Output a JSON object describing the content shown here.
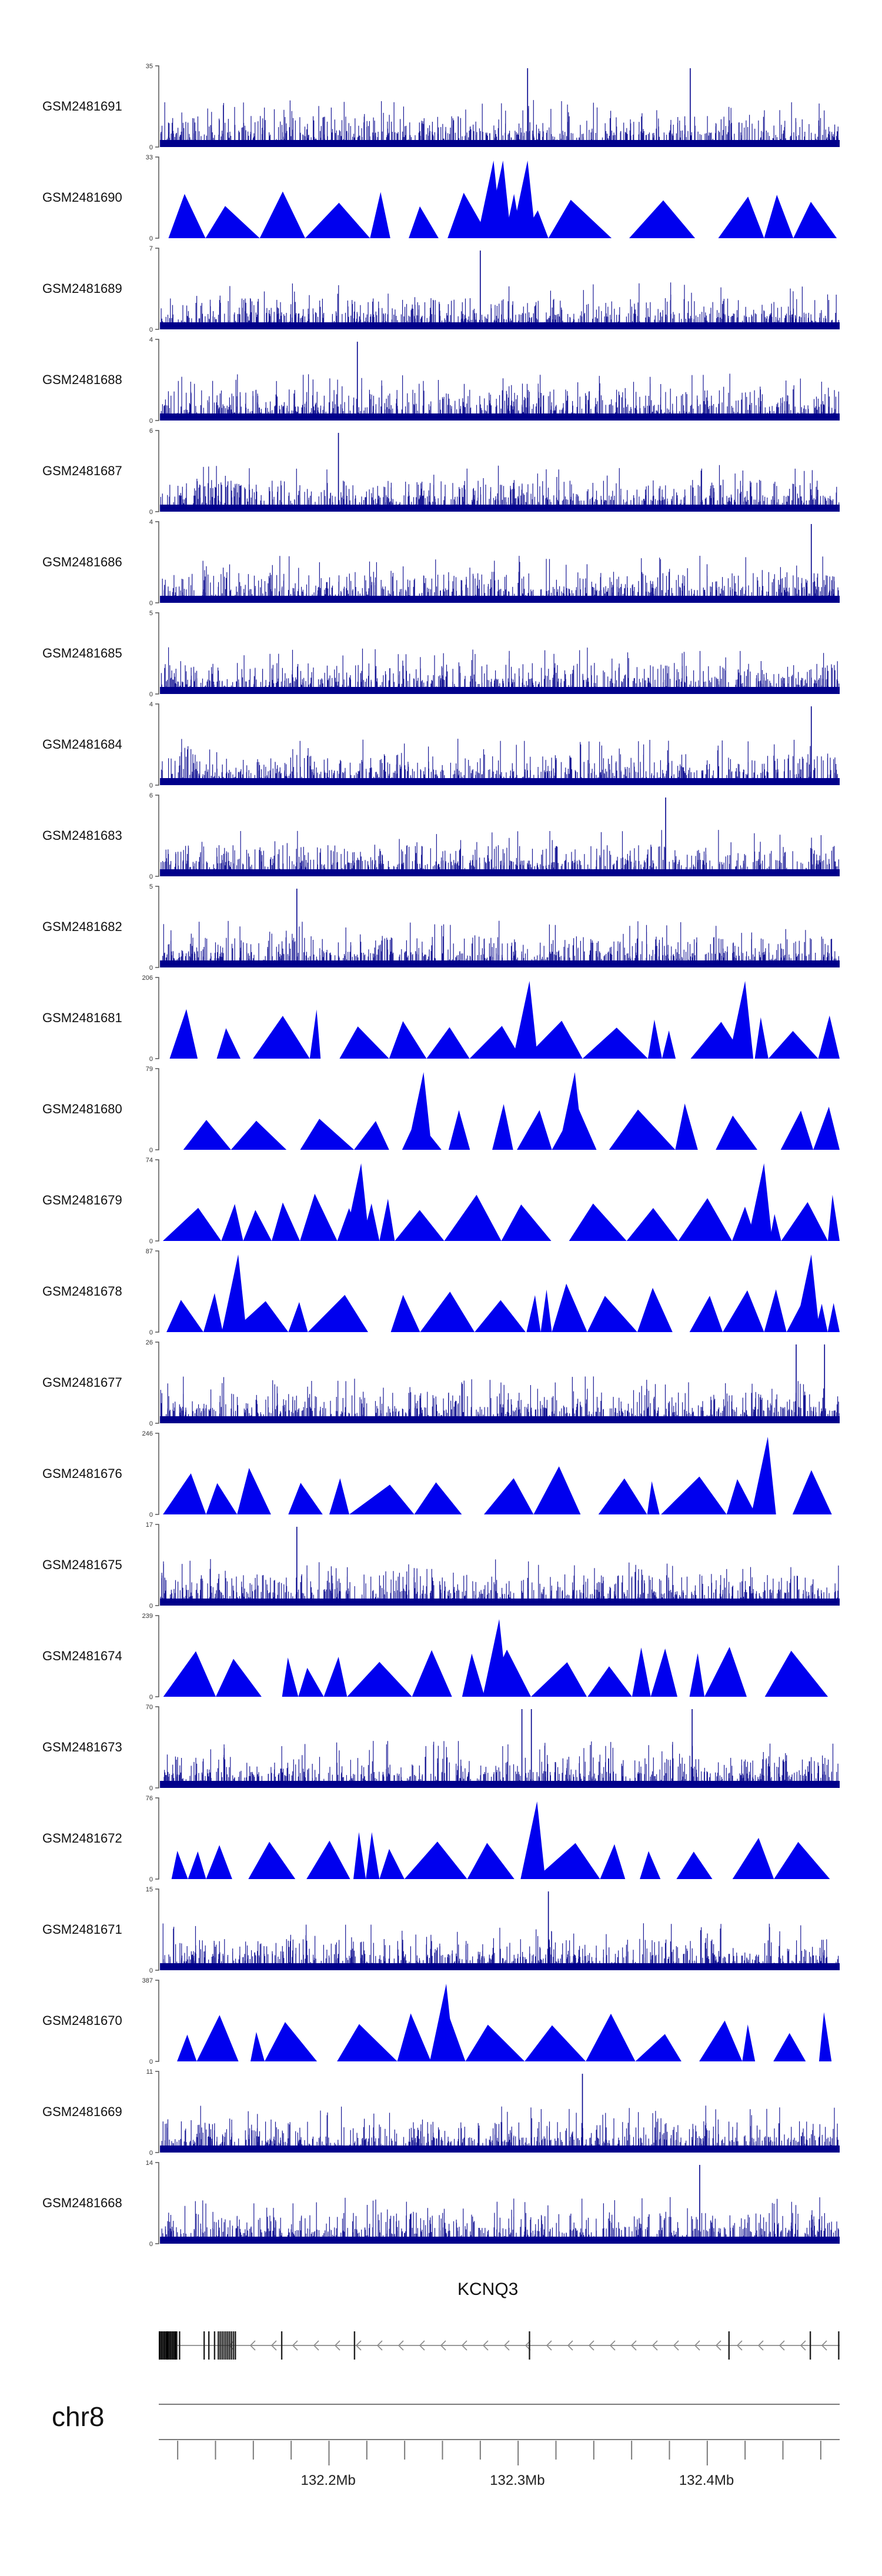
{
  "colors": {
    "signal": "#0000ee",
    "signal_dark": "#00008b",
    "axis": "#555555",
    "gene": "#222222"
  },
  "chart_data": {
    "type": "genome-track",
    "title": "",
    "chromosome": "chr8",
    "xlim_mb": [
      132.11,
      132.47
    ],
    "x_ticks_mb": [
      132.12,
      132.14,
      132.16,
      132.18,
      132.2,
      132.22,
      132.24,
      132.26,
      132.28,
      132.3,
      132.32,
      132.34,
      132.36,
      132.38,
      132.4,
      132.42,
      132.44,
      132.46
    ],
    "x_tick_labels": [
      {
        "label": "132.2Mb",
        "value": 132.2
      },
      {
        "label": "132.3Mb",
        "value": 132.3
      },
      {
        "label": "132.4Mb",
        "value": 132.4
      }
    ],
    "gene": {
      "name": "KCNQ3",
      "strand": "-",
      "start_mb": 132.11,
      "end_mb": 132.47,
      "exons_mb": [
        132.111,
        132.112,
        132.1125,
        132.1135,
        132.1155,
        132.1165,
        132.117,
        132.118,
        132.1195,
        132.121,
        132.134,
        132.1365,
        132.1395,
        132.1415,
        132.1425,
        132.1435,
        132.1445,
        132.1455,
        132.1465,
        132.1475,
        132.1485,
        132.1495,
        132.1505,
        132.175,
        132.2135,
        132.306,
        132.4115,
        132.4545,
        132.4695
      ]
    },
    "tracks": [
      {
        "name": "GSM2481691",
        "ymax": 35,
        "style": "dense",
        "peaks_mb": [
          132.305,
          132.391
        ]
      },
      {
        "name": "GSM2481690",
        "ymax": 33,
        "style": "tri",
        "peaks_mb": [
          132.287,
          132.292,
          132.305
        ]
      },
      {
        "name": "GSM2481689",
        "ymax": 7,
        "style": "dense",
        "peaks_mb": [
          132.28
        ]
      },
      {
        "name": "GSM2481688",
        "ymax": 4,
        "style": "dense",
        "peaks_mb": [
          132.215
        ]
      },
      {
        "name": "GSM2481687",
        "ymax": 6,
        "style": "dense",
        "peaks_mb": [
          132.205
        ]
      },
      {
        "name": "GSM2481686",
        "ymax": 4,
        "style": "dense",
        "peaks_mb": [
          132.455
        ]
      },
      {
        "name": "GSM2481685",
        "ymax": 5,
        "style": "dense",
        "peaks_mb": []
      },
      {
        "name": "GSM2481684",
        "ymax": 4,
        "style": "dense",
        "peaks_mb": [
          132.455
        ]
      },
      {
        "name": "GSM2481683",
        "ymax": 6,
        "style": "dense",
        "peaks_mb": [
          132.378
        ]
      },
      {
        "name": "GSM2481682",
        "ymax": 5,
        "style": "dense",
        "peaks_mb": [
          132.183
        ]
      },
      {
        "name": "GSM2481681",
        "ymax": 206,
        "style": "tri",
        "peaks_mb": [
          132.306,
          132.42
        ]
      },
      {
        "name": "GSM2481680",
        "ymax": 79,
        "style": "tri",
        "peaks_mb": [
          132.25,
          132.33
        ]
      },
      {
        "name": "GSM2481679",
        "ymax": 74,
        "style": "tri",
        "peaks_mb": [
          132.217,
          132.43
        ]
      },
      {
        "name": "GSM2481678",
        "ymax": 87,
        "style": "tri",
        "peaks_mb": [
          132.152,
          132.455
        ]
      },
      {
        "name": "GSM2481677",
        "ymax": 26,
        "style": "dense",
        "peaks_mb": [
          132.462,
          132.447
        ]
      },
      {
        "name": "GSM2481676",
        "ymax": 246,
        "style": "tri",
        "peaks_mb": [
          132.432
        ]
      },
      {
        "name": "GSM2481675",
        "ymax": 17,
        "style": "dense",
        "peaks_mb": [
          132.183
        ]
      },
      {
        "name": "GSM2481674",
        "ymax": 239,
        "style": "tri",
        "peaks_mb": [
          132.29
        ]
      },
      {
        "name": "GSM2481673",
        "ymax": 70,
        "style": "dense",
        "peaks_mb": [
          132.302,
          132.307,
          132.392
        ]
      },
      {
        "name": "GSM2481672",
        "ymax": 76,
        "style": "tri",
        "peaks_mb": [
          132.31
        ]
      },
      {
        "name": "GSM2481671",
        "ymax": 15,
        "style": "dense",
        "peaks_mb": [
          132.316
        ]
      },
      {
        "name": "GSM2481670",
        "ymax": 387,
        "style": "tri",
        "peaks_mb": [
          132.262
        ]
      },
      {
        "name": "GSM2481669",
        "ymax": 11,
        "style": "dense",
        "peaks_mb": [
          132.334
        ]
      },
      {
        "name": "GSM2481668",
        "ymax": 14,
        "style": "dense",
        "peaks_mb": [
          132.396
        ]
      }
    ]
  }
}
